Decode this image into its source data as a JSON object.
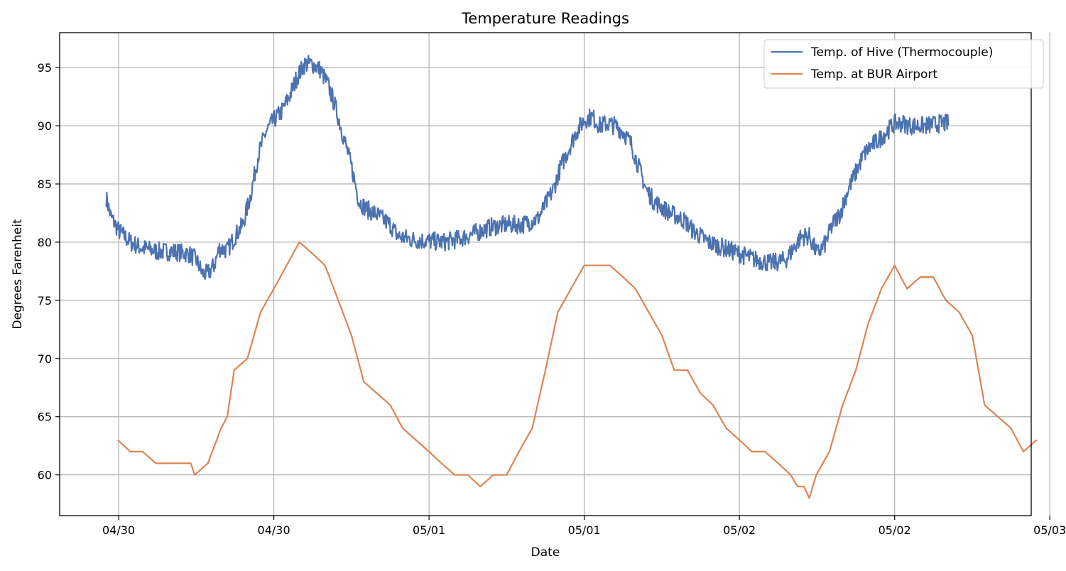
{
  "chart_data": {
    "type": "line",
    "title": "Temperature Readings",
    "xlabel": "Date",
    "ylabel": "Degrees Farenheit",
    "ylim": [
      56.5,
      98
    ],
    "xlim_hours": [
      -7.6,
      117.6
    ],
    "grid": true,
    "legend_position": "top-right",
    "x_ticks": [
      {
        "hours": 0,
        "label": "04/30"
      },
      {
        "hours": 20,
        "label": "04/30"
      },
      {
        "hours": 40,
        "label": "05/01"
      },
      {
        "hours": 60,
        "label": "05/01"
      },
      {
        "hours": 80,
        "label": "05/02"
      },
      {
        "hours": 100,
        "label": "05/02"
      },
      {
        "hours": 120,
        "label": "05/03"
      }
    ],
    "y_ticks": [
      60,
      65,
      70,
      75,
      80,
      85,
      90,
      95
    ],
    "series": [
      {
        "name": "Temp. of Hive (Thermocouple)",
        "color": "#4c72b0",
        "noise_band": 1.6,
        "x_hours": [
          -1.6,
          -1.0,
          0.0,
          1.5,
          3.0,
          5.0,
          7.0,
          9.0,
          10.0,
          10.8,
          11.5,
          12.3,
          13.0,
          14.0,
          15.0,
          16.0,
          17.0,
          18.0,
          19.0,
          20.0,
          21.0,
          22.0,
          23.0,
          24.0,
          25.0,
          26.0,
          27.0,
          28.0,
          29.0,
          30.0,
          31.0,
          32.0,
          33.0,
          34.0,
          35.0,
          36.0,
          38.0,
          40.0,
          42.0,
          44.0,
          46.0,
          48.0,
          50.0,
          52.0,
          54.0,
          55.0,
          56.0,
          57.0,
          58.0,
          59.0,
          60.0,
          61.0,
          62.0,
          63.0,
          64.0,
          65.0,
          66.0,
          67.0,
          68.0,
          69.0,
          70.0,
          71.0,
          72.0,
          73.0,
          74.0,
          75.0,
          76.0,
          78.0,
          80.0,
          82.0,
          84.0,
          85.0,
          86.0,
          87.0,
          88.0,
          89.0,
          90.0,
          91.0,
          92.0,
          93.0,
          94.0,
          95.0,
          96.0,
          97.0,
          98.0,
          99.0,
          100.0,
          101.0,
          102.0,
          104.0,
          106.0,
          107.0
        ],
        "y": [
          83.8,
          82.2,
          81.0,
          80.0,
          79.5,
          79.2,
          79.2,
          79.0,
          78.5,
          77.3,
          77.3,
          78.0,
          79.5,
          79.3,
          80.5,
          81.5,
          84.0,
          87.5,
          89.5,
          90.5,
          91.2,
          92.5,
          94.2,
          95.3,
          95.3,
          94.8,
          93.5,
          91.5,
          89.0,
          86.5,
          83.5,
          82.8,
          82.5,
          82.0,
          81.5,
          80.5,
          80.2,
          80.1,
          80.0,
          80.3,
          80.8,
          81.3,
          81.5,
          81.5,
          82.0,
          83.2,
          84.5,
          86.5,
          88.0,
          89.5,
          90.5,
          90.8,
          90.0,
          90.2,
          90.0,
          89.5,
          88.5,
          86.5,
          84.5,
          83.5,
          83.0,
          82.5,
          82.2,
          81.8,
          81.0,
          80.5,
          80.0,
          79.5,
          79.0,
          78.5,
          78.2,
          78.3,
          78.5,
          79.5,
          80.5,
          80.5,
          79.0,
          79.8,
          81.5,
          82.5,
          84.5,
          86.0,
          87.5,
          88.3,
          88.8,
          89.5,
          90.2,
          90.2,
          90.0,
          90.0,
          90.2,
          90.2
        ]
      },
      {
        "name": "Temp. at BUR Airport",
        "color": "#dd8452",
        "x_hours": [
          -0.1,
          1.5,
          3.1,
          4.8,
          6.5,
          8.1,
          9.3,
          9.8,
          11.5,
          13.2,
          14.0,
          14.9,
          16.6,
          18.3,
          20.0,
          23.3,
          25.0,
          26.6,
          28.3,
          30.0,
          31.6,
          33.3,
          35.0,
          36.6,
          38.3,
          40.0,
          41.6,
          43.3,
          45.0,
          46.6,
          48.3,
          50.0,
          51.6,
          53.3,
          55.0,
          56.6,
          58.3,
          60.0,
          63.3,
          65.0,
          66.6,
          68.3,
          70.0,
          71.6,
          73.3,
          75.0,
          76.6,
          78.3,
          80.0,
          81.6,
          83.3,
          85.0,
          86.6,
          87.5,
          88.3,
          89.0,
          89.9,
          91.6,
          93.3,
          95.0,
          96.6,
          98.3,
          100.0,
          101.6,
          103.3,
          105.0,
          106.6,
          108.3,
          110.0,
          111.6,
          113.3,
          115.0,
          116.6,
          118.3
        ],
        "y": [
          63,
          62,
          62,
          61,
          61,
          61,
          61,
          60,
          61,
          64,
          65,
          69,
          70,
          74,
          76,
          80,
          79,
          78,
          75,
          72,
          68,
          67,
          66,
          64,
          63,
          62,
          61,
          60,
          60,
          59,
          60,
          60,
          62,
          64,
          69,
          74,
          76,
          78,
          78,
          77,
          76,
          74,
          72,
          69,
          69,
          67,
          66,
          64,
          63,
          62,
          62,
          61,
          60,
          59,
          59,
          58,
          60,
          62,
          66,
          69,
          73,
          76,
          78,
          76,
          77,
          77,
          75,
          74,
          72,
          66,
          65,
          64,
          62,
          63
        ]
      }
    ]
  }
}
